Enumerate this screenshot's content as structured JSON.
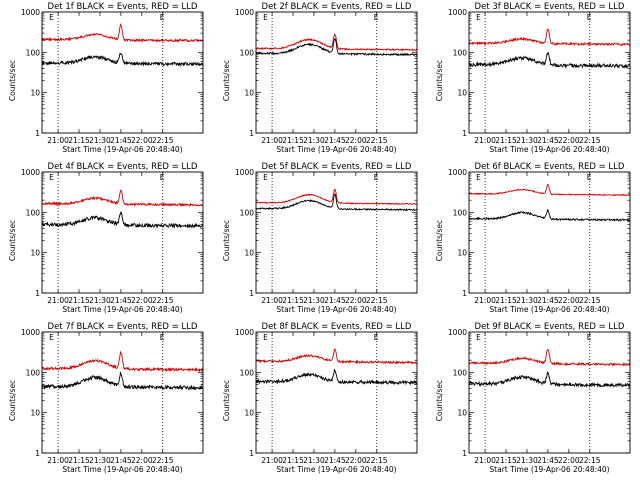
{
  "chart_data": [
    {
      "type": "line",
      "title": "Det 1f BLACK = Events, RED = LLD",
      "xlabel": "Start Time (19-Apr-06 20:48:40)",
      "ylabel": "Counts/sec",
      "yscale": "log",
      "ylim": [
        1,
        1000
      ],
      "xlim": [
        0,
        100
      ],
      "xticks": [
        "21:00",
        "21:15",
        "21:30",
        "21:45",
        "22:00",
        "22:15"
      ],
      "yticks": [
        "1",
        "10",
        "100",
        "1000"
      ],
      "marker_labels": [
        "E",
        "E"
      ],
      "grid": false,
      "legend": "none",
      "series": [
        {
          "color": "#d40000",
          "base": 210,
          "hump": 1.35,
          "spike": 2.3,
          "noise": 0.06
        },
        {
          "color": "#000000",
          "base": 55,
          "hump": 1.45,
          "spike": 1.8,
          "noise": 0.09
        }
      ]
    },
    {
      "type": "line",
      "title": "Det 2f BLACK = Events, RED = LLD",
      "xlabel": "Start Time (19-Apr-06 20:48:40)",
      "ylabel": "Counts/sec",
      "yscale": "log",
      "ylim": [
        1,
        1000
      ],
      "xlim": [
        0,
        100
      ],
      "xticks": [
        "21:00",
        "21:15",
        "21:30",
        "21:45",
        "22:00",
        "22:15"
      ],
      "yticks": [
        "1",
        "10",
        "100",
        "1000"
      ],
      "marker_labels": [
        "E",
        "E"
      ],
      "grid": false,
      "legend": "none",
      "series": [
        {
          "color": "#d40000",
          "base": 125,
          "hump": 1.7,
          "spike": 2.2,
          "noise": 0.04
        },
        {
          "color": "#000000",
          "base": 95,
          "hump": 1.7,
          "spike": 2.3,
          "noise": 0.05
        }
      ]
    },
    {
      "type": "line",
      "title": "Det 3f BLACK = Events, RED = LLD",
      "xlabel": "Start Time (19-Apr-06 20:48:40)",
      "ylabel": "Counts/sec",
      "yscale": "log",
      "ylim": [
        1,
        1000
      ],
      "xlim": [
        0,
        100
      ],
      "xticks": [
        "21:00",
        "21:15",
        "21:30",
        "21:45",
        "22:00",
        "22:15"
      ],
      "yticks": [
        "1",
        "10",
        "100",
        "1000"
      ],
      "marker_labels": [
        "E",
        "E"
      ],
      "grid": false,
      "legend": "none",
      "series": [
        {
          "color": "#d40000",
          "base": 170,
          "hump": 1.3,
          "spike": 2.2,
          "noise": 0.06
        },
        {
          "color": "#000000",
          "base": 50,
          "hump": 1.5,
          "spike": 2.0,
          "noise": 0.1
        }
      ]
    },
    {
      "type": "line",
      "title": "Det 4f BLACK = Events, RED = LLD",
      "xlabel": "Start Time (19-Apr-06 20:48:40)",
      "ylabel": "Counts/sec",
      "yscale": "log",
      "ylim": [
        1,
        1000
      ],
      "xlim": [
        0,
        100
      ],
      "xticks": [
        "21:00",
        "21:15",
        "21:30",
        "21:45",
        "22:00",
        "22:15"
      ],
      "yticks": [
        "1",
        "10",
        "100",
        "1000"
      ],
      "marker_labels": [
        "E",
        "E"
      ],
      "grid": false,
      "legend": "none",
      "series": [
        {
          "color": "#d40000",
          "base": 165,
          "hump": 1.4,
          "spike": 2.1,
          "noise": 0.06
        },
        {
          "color": "#000000",
          "base": 50,
          "hump": 1.5,
          "spike": 2.0,
          "noise": 0.1
        }
      ]
    },
    {
      "type": "line",
      "title": "Det 5f BLACK = Events, RED = LLD",
      "xlabel": "Start Time (19-Apr-06 20:48:40)",
      "ylabel": "Counts/sec",
      "yscale": "log",
      "ylim": [
        1,
        1000
      ],
      "xlim": [
        0,
        100
      ],
      "xticks": [
        "21:00",
        "21:15",
        "21:30",
        "21:45",
        "22:00",
        "22:15"
      ],
      "yticks": [
        "1",
        "10",
        "100",
        "1000"
      ],
      "marker_labels": [
        "E",
        "E"
      ],
      "grid": false,
      "legend": "none",
      "series": [
        {
          "color": "#d40000",
          "base": 175,
          "hump": 1.6,
          "spike": 2.1,
          "noise": 0.03
        },
        {
          "color": "#000000",
          "base": 125,
          "hump": 1.6,
          "spike": 2.2,
          "noise": 0.04
        }
      ]
    },
    {
      "type": "line",
      "title": "Det 6f BLACK = Events, RED = LLD",
      "xlabel": "Start Time (19-Apr-06 20:48:40)",
      "ylabel": "Counts/sec",
      "yscale": "log",
      "ylim": [
        1,
        1000
      ],
      "xlim": [
        0,
        100
      ],
      "xticks": [
        "21:00",
        "21:15",
        "21:30",
        "21:45",
        "22:00",
        "22:15"
      ],
      "yticks": [
        "1",
        "10",
        "100",
        "1000"
      ],
      "marker_labels": [
        "E",
        "E"
      ],
      "grid": false,
      "legend": "none",
      "series": [
        {
          "color": "#d40000",
          "base": 290,
          "hump": 1.3,
          "spike": 1.7,
          "noise": 0.03
        },
        {
          "color": "#000000",
          "base": 70,
          "hump": 1.45,
          "spike": 1.6,
          "noise": 0.05
        }
      ]
    },
    {
      "type": "line",
      "title": "Det 7f BLACK = Events, RED = LLD",
      "xlabel": "Start Time (19-Apr-06 20:48:40)",
      "ylabel": "Counts/sec",
      "yscale": "log",
      "ylim": [
        1,
        1000
      ],
      "xlim": [
        0,
        100
      ],
      "xticks": [
        "21:00",
        "21:15",
        "21:30",
        "21:45",
        "22:00",
        "22:15"
      ],
      "yticks": [
        "1",
        "10",
        "100",
        "1000"
      ],
      "marker_labels": [
        "E",
        "E"
      ],
      "grid": false,
      "legend": "none",
      "series": [
        {
          "color": "#d40000",
          "base": 125,
          "hump": 1.6,
          "spike": 2.5,
          "noise": 0.07
        },
        {
          "color": "#000000",
          "base": 45,
          "hump": 1.7,
          "spike": 2.1,
          "noise": 0.1
        }
      ]
    },
    {
      "type": "line",
      "title": "Det 8f BLACK = Events, RED = LLD",
      "xlabel": "Start Time (19-Apr-06 20:48:40)",
      "ylabel": "Counts/sec",
      "yscale": "log",
      "ylim": [
        1,
        1000
      ],
      "xlim": [
        0,
        100
      ],
      "xticks": [
        "21:00",
        "21:15",
        "21:30",
        "21:45",
        "22:00",
        "22:15"
      ],
      "yticks": [
        "1",
        "10",
        "100",
        "1000"
      ],
      "marker_labels": [
        "E",
        "E"
      ],
      "grid": false,
      "legend": "none",
      "series": [
        {
          "color": "#d40000",
          "base": 190,
          "hump": 1.4,
          "spike": 2.0,
          "noise": 0.06
        },
        {
          "color": "#000000",
          "base": 60,
          "hump": 1.5,
          "spike": 1.9,
          "noise": 0.09
        }
      ]
    },
    {
      "type": "line",
      "title": "Det 9f BLACK = Events, RED = LLD",
      "xlabel": "Start Time (19-Apr-06 20:48:40)",
      "ylabel": "Counts/sec",
      "yscale": "log",
      "ylim": [
        1,
        1000
      ],
      "xlim": [
        0,
        100
      ],
      "xticks": [
        "21:00",
        "21:15",
        "21:30",
        "21:45",
        "22:00",
        "22:15"
      ],
      "yticks": [
        "1",
        "10",
        "100",
        "1000"
      ],
      "marker_labels": [
        "E",
        "E"
      ],
      "grid": false,
      "legend": "none",
      "series": [
        {
          "color": "#d40000",
          "base": 170,
          "hump": 1.35,
          "spike": 2.2,
          "noise": 0.06
        },
        {
          "color": "#000000",
          "base": 52,
          "hump": 1.5,
          "spike": 1.9,
          "noise": 0.1
        }
      ]
    }
  ]
}
